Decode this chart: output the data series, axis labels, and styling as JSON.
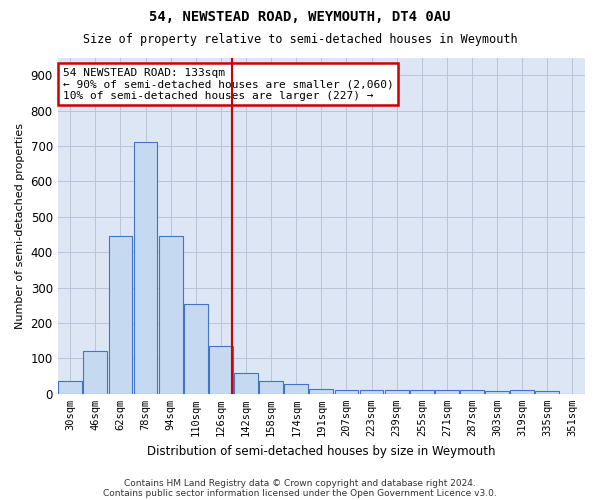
{
  "title": "54, NEWSTEAD ROAD, WEYMOUTH, DT4 0AU",
  "subtitle": "Size of property relative to semi-detached houses in Weymouth",
  "xlabel": "Distribution of semi-detached houses by size in Weymouth",
  "ylabel": "Number of semi-detached properties",
  "bin_labels": [
    "30sqm",
    "46sqm",
    "62sqm",
    "78sqm",
    "94sqm",
    "110sqm",
    "126sqm",
    "142sqm",
    "158sqm",
    "174sqm",
    "191sqm",
    "207sqm",
    "223sqm",
    "239sqm",
    "255sqm",
    "271sqm",
    "287sqm",
    "303sqm",
    "319sqm",
    "335sqm",
    "351sqm"
  ],
  "bar_heights": [
    35,
    120,
    445,
    710,
    445,
    255,
    135,
    60,
    37,
    28,
    13,
    10,
    10,
    10,
    10,
    10,
    10,
    8,
    10,
    8,
    0
  ],
  "bar_color": "#c5d9f1",
  "bar_edge_color": "#4472c4",
  "vline_color": "#cc0000",
  "annotation_box_edge": "#cc0000",
  "annotation_title": "54 NEWSTEAD ROAD: 133sqm",
  "annotation_line1": "← 90% of semi-detached houses are smaller (2,060)",
  "annotation_line2": "10% of semi-detached houses are larger (227) →",
  "ylim": [
    0,
    950
  ],
  "yticks": [
    0,
    100,
    200,
    300,
    400,
    500,
    600,
    700,
    800,
    900
  ],
  "grid_color": "#b8c4d8",
  "bg_color": "#dce6f5",
  "footer1": "Contains HM Land Registry data © Crown copyright and database right 2024.",
  "footer2": "Contains public sector information licensed under the Open Government Licence v3.0."
}
